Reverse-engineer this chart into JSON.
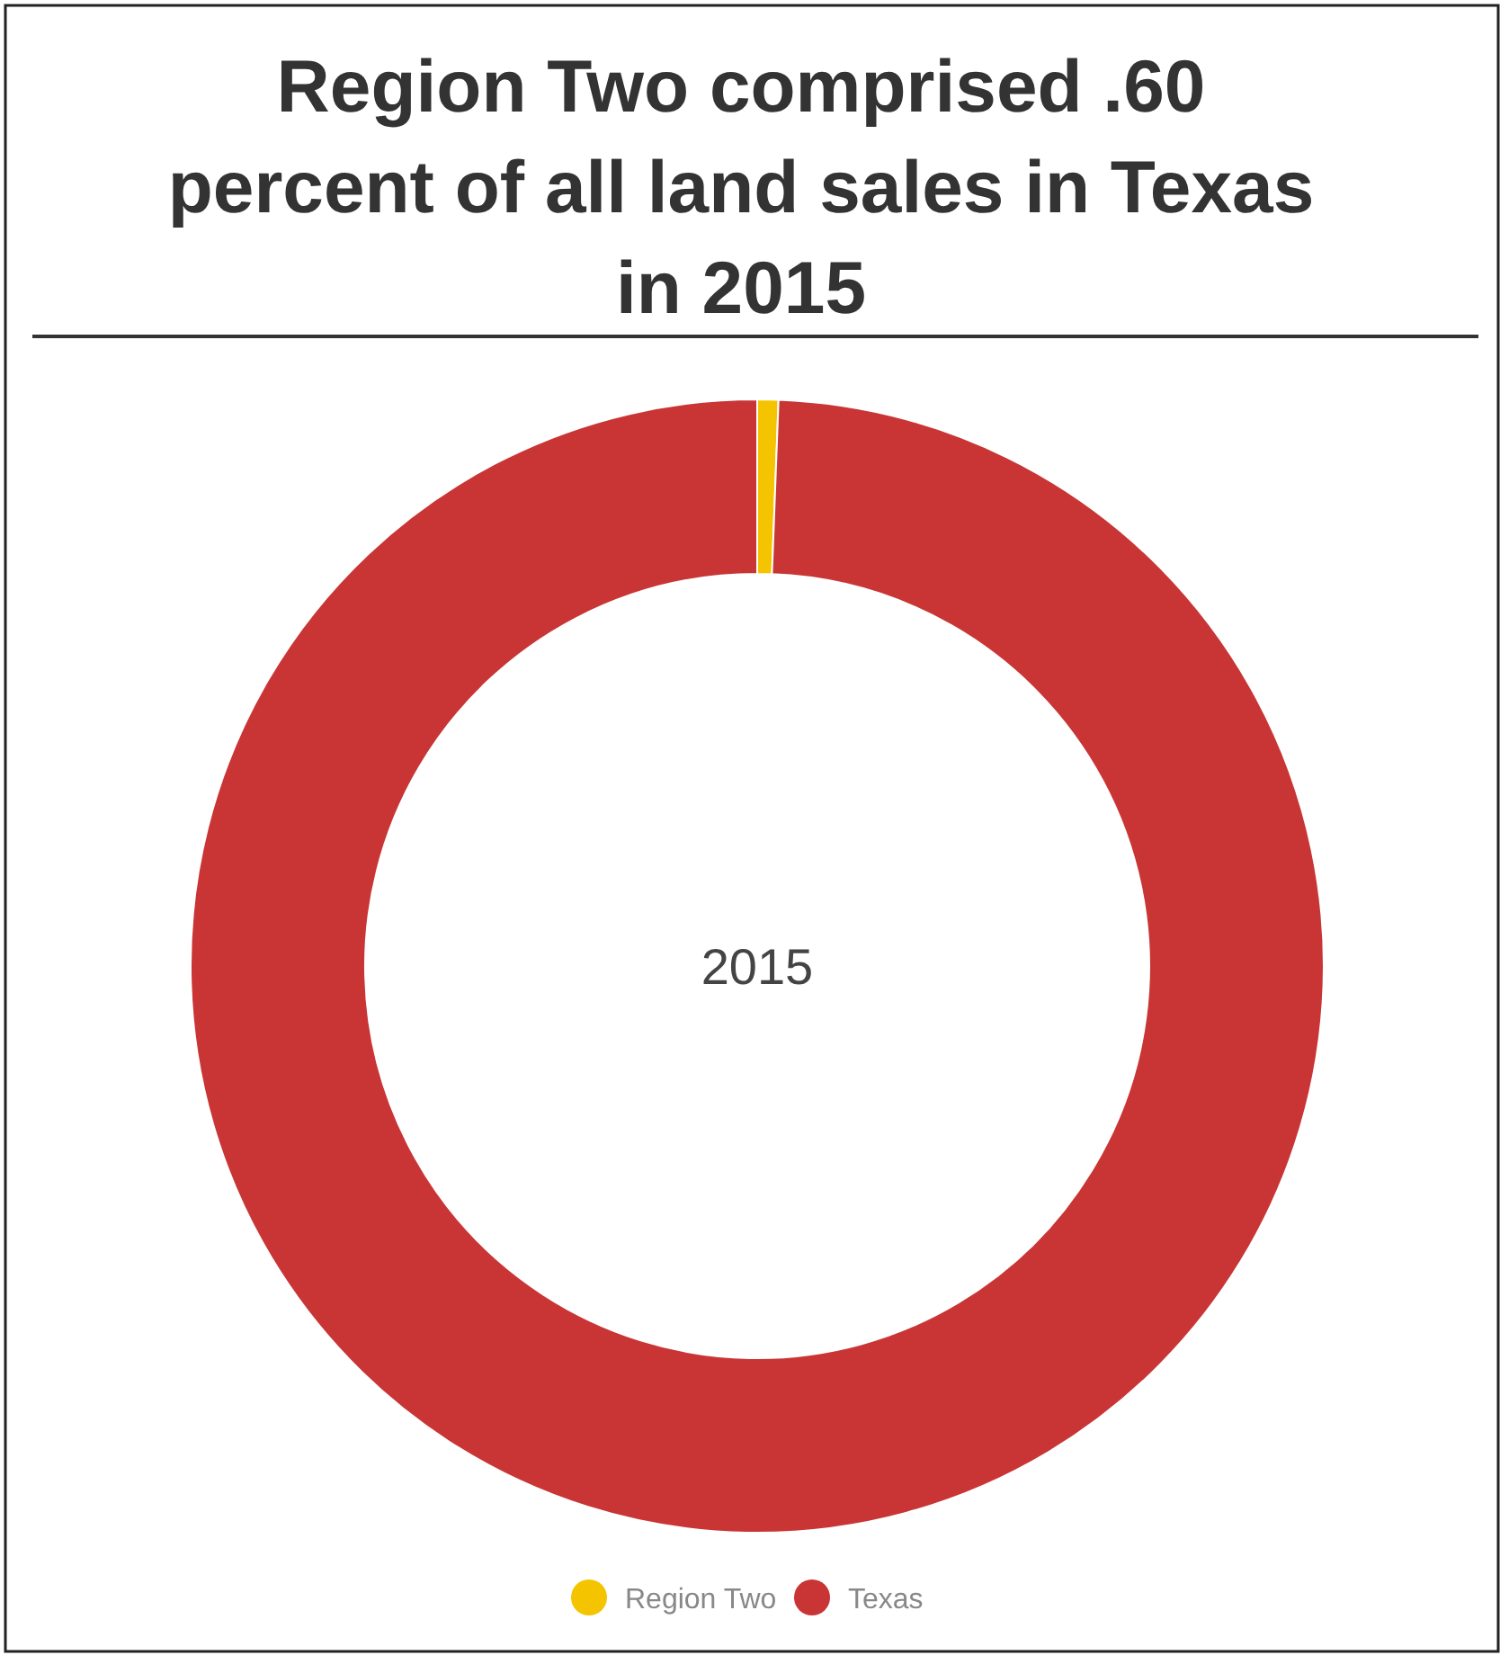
{
  "chart_data": {
    "type": "donut",
    "title": "Region Two comprised .60\npercent of all land sales in Texas\nin 2015",
    "categories": [
      "Region Two",
      "Texas"
    ],
    "values": [
      0.6,
      99.4
    ],
    "colors": [
      "#f5c400",
      "#c93535"
    ],
    "annotations": [
      "2015"
    ],
    "legend": "bottom"
  }
}
